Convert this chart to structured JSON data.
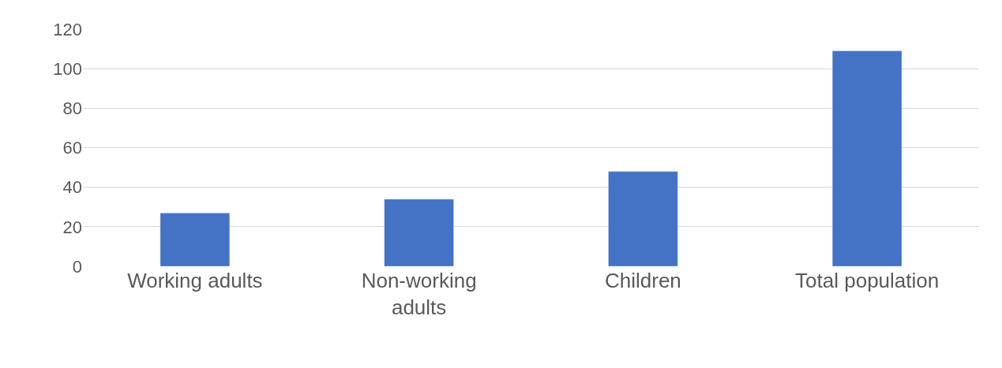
{
  "chart_data": {
    "type": "bar",
    "categories": [
      "Working adults",
      "Non-working adults",
      "Children",
      "Total population"
    ],
    "values": [
      27,
      34,
      48,
      109
    ],
    "color": "#4472c4",
    "ylim": [
      0,
      120
    ],
    "yticks": [
      0,
      20,
      40,
      60,
      80,
      100,
      120
    ],
    "grid": "y"
  }
}
